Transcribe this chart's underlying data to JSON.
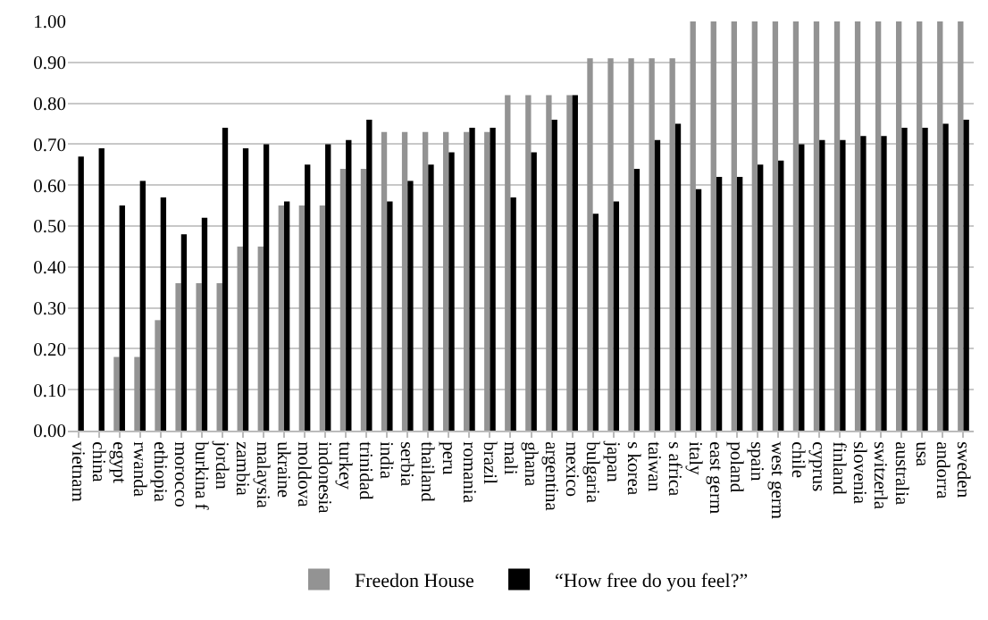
{
  "chart_data": {
    "type": "bar",
    "categories": [
      "vietnam",
      "china",
      "egypt",
      "rwanda",
      "ethiopia",
      "morocco",
      "burkina f",
      "jordan",
      "zambia",
      "malaysia",
      "ukraine",
      "moldova",
      "indonesia",
      "turkey",
      "trinidad",
      "india",
      "serbia",
      "thailand",
      "peru",
      "romania",
      "brazil",
      "mali",
      "ghana",
      "argentina",
      "mexico",
      "bulgaria",
      "japan",
      "s korea",
      "taiwan",
      "s africa",
      "italy",
      "east germ",
      "poland",
      "spain",
      "west germ",
      "chile",
      "cyprus",
      "finland",
      "slovenia",
      "switzerla",
      "australia",
      "usa",
      "andorra",
      "sweden"
    ],
    "series": [
      {
        "name": "Freedon House",
        "color": "#939393",
        "values": [
          0,
          0,
          0.18,
          0.18,
          0.27,
          0.36,
          0.36,
          0.36,
          0.45,
          0.45,
          0.55,
          0.55,
          0.55,
          0.64,
          0.64,
          0.73,
          0.73,
          0.73,
          0.73,
          0.73,
          0.73,
          0.82,
          0.82,
          0.82,
          0.82,
          0.91,
          0.91,
          0.91,
          0.91,
          0.91,
          1.0,
          1.0,
          1.0,
          1.0,
          1.0,
          1.0,
          1.0,
          1.0,
          1.0,
          1.0,
          1.0,
          1.0,
          1.0,
          1.0
        ]
      },
      {
        "name": "“How free do you feel?”",
        "color": "#000000",
        "values": [
          0.67,
          0.69,
          0.55,
          0.61,
          0.57,
          0.48,
          0.52,
          0.74,
          0.69,
          0.7,
          0.56,
          0.65,
          0.7,
          0.71,
          0.76,
          0.56,
          0.61,
          0.65,
          0.68,
          0.74,
          0.74,
          0.57,
          0.68,
          0.76,
          0.82,
          0.53,
          0.56,
          0.64,
          0.71,
          0.75,
          0.59,
          0.62,
          0.62,
          0.65,
          0.66,
          0.7,
          0.71,
          0.71,
          0.72,
          0.72,
          0.74,
          0.74,
          0.75,
          0.76
        ]
      }
    ],
    "ylim": [
      0,
      1.0
    ],
    "yticks": [
      {
        "value": 0,
        "label": "0.00"
      },
      {
        "value": 0.1,
        "label": "0.10"
      },
      {
        "value": 0.2,
        "label": "0.20"
      },
      {
        "value": 0.3,
        "label": "0.30"
      },
      {
        "value": 0.4,
        "label": "0.40"
      },
      {
        "value": 0.5,
        "label": "0.50"
      },
      {
        "value": 0.6,
        "label": "0.60"
      },
      {
        "value": 0.7,
        "label": "0.70"
      },
      {
        "value": 0.8,
        "label": "0.80"
      },
      {
        "value": 0.9,
        "label": "0.90"
      },
      {
        "value": 1.0,
        "label": "1.00"
      }
    ],
    "grid": "y",
    "legend": "bottom"
  }
}
